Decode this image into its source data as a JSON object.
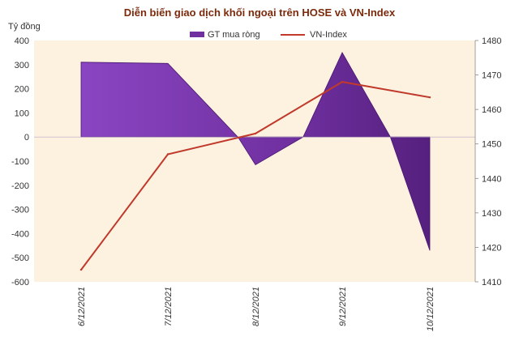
{
  "chart_data": {
    "type": "area",
    "title": "Diễn biến giao dịch khối ngoại trên HOSE và VN-Index",
    "ylabel": "Tỷ đồng",
    "categories": [
      "6/12/2021",
      "7/12/2021",
      "8/12/2021",
      "9/12/2021",
      "10/12/2021"
    ],
    "ylim": [
      -600,
      400
    ],
    "yticks": [
      "400",
      "300",
      "200",
      "100",
      "0",
      "-100",
      "-200",
      "-300",
      "-400",
      "-500",
      "-600"
    ],
    "y2lim": [
      1410,
      1480
    ],
    "y2ticks": [
      "1480",
      "1470",
      "1460",
      "1450",
      "1440",
      "1430",
      "1420",
      "1410"
    ],
    "series": [
      {
        "name": "GT mua ròng",
        "type": "area",
        "axis": "left",
        "color": "#7030a0",
        "values": [
          {
            "x": "6/12/2021",
            "y": 310
          },
          {
            "x": "6/12/2021",
            "y": 310
          },
          {
            "x": "7/12/2021",
            "y": 305
          },
          {
            "x": "7/12/2021",
            "y": 305
          },
          {
            "x": "8/12/2021",
            "y": -115
          },
          {
            "x": "8/12/2021",
            "y": -115
          },
          {
            "x": "9/12/2021",
            "y": 350
          },
          {
            "x": "9/12/2021",
            "y": 350
          },
          {
            "x": "10/12/2021",
            "y": -470
          },
          {
            "x": "10/12/2021",
            "y": -470
          }
        ],
        "points": [
          {
            "x": 0,
            "y": 310
          },
          {
            "x": 1,
            "y": 305
          },
          {
            "x": 1.8,
            "y": 0
          },
          {
            "x": 2,
            "y": -115
          },
          {
            "x": 2.55,
            "y": 0
          },
          {
            "x": 3,
            "y": 350
          },
          {
            "x": 3.55,
            "y": 0
          },
          {
            "x": 4,
            "y": -470
          }
        ]
      },
      {
        "name": "VN-Index",
        "type": "line",
        "axis": "right",
        "color": "#c0392b",
        "values": [
          1413.5,
          1447,
          1453,
          1468,
          1463.5
        ]
      }
    ],
    "legend": "top",
    "grid": false
  }
}
